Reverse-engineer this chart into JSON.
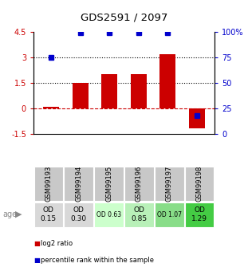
{
  "title": "GDS2591 / 2097",
  "samples": [
    "GSM99193",
    "GSM99194",
    "GSM99195",
    "GSM99196",
    "GSM99197",
    "GSM99198"
  ],
  "log2_ratio": [
    0.12,
    1.5,
    2.0,
    2.0,
    3.2,
    -1.15
  ],
  "percentile_rank": [
    75,
    99,
    99,
    99,
    99,
    18
  ],
  "ylim_left": [
    -1.5,
    4.5
  ],
  "ylim_right": [
    0,
    100
  ],
  "yticks_left": [
    -1.5,
    0,
    1.5,
    3,
    4.5
  ],
  "yticks_right": [
    0,
    25,
    50,
    75,
    100
  ],
  "ytick_labels_left": [
    "-1.5",
    "0",
    "1.5",
    "3",
    "4.5"
  ],
  "ytick_labels_right": [
    "0",
    "25",
    "50",
    "75",
    "100%"
  ],
  "bar_color": "#cc0000",
  "dot_color": "#0000cc",
  "bar_width": 0.55,
  "age_labels": [
    "OD\n0.15",
    "OD\n0.30",
    "OD 0.63",
    "OD\n0.85",
    "OD 1.07",
    "OD\n1.29"
  ],
  "age_bg_colors": [
    "#d8d8d8",
    "#d8d8d8",
    "#ccffcc",
    "#b8f0b8",
    "#88dd88",
    "#44cc44"
  ],
  "age_fontsize_large": [
    true,
    true,
    false,
    true,
    false,
    true
  ],
  "legend_items": [
    "log2 ratio",
    "percentile rank within the sample"
  ],
  "legend_colors": [
    "#cc0000",
    "#0000cc"
  ],
  "gsm_bg_color": "#c8c8c8",
  "plot_bg_color": "#ffffff",
  "fig_bg_color": "#ffffff"
}
